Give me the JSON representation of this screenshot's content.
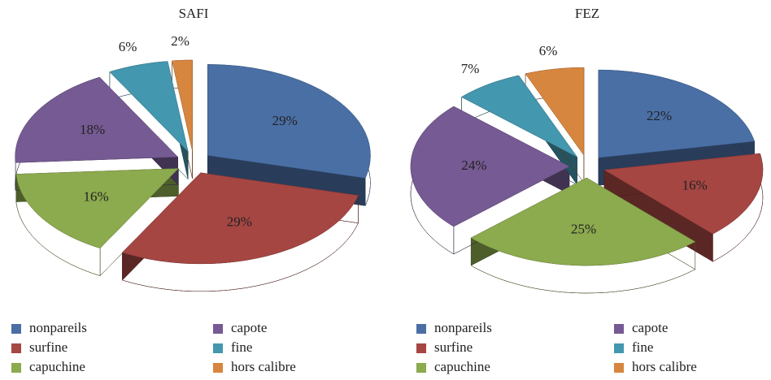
{
  "chart_data": [
    {
      "type": "pie",
      "title": "SAFI",
      "categories": [
        "nonpareils",
        "surfine",
        "capuchine",
        "capote",
        "fine",
        "hors calibre"
      ],
      "values": [
        29,
        29,
        16,
        18,
        6,
        2
      ],
      "value_labels": [
        "29%",
        "29%",
        "16%",
        "18%",
        "6%",
        "2%"
      ],
      "colors": [
        "#4a6fa5",
        "#a54643",
        "#8caa4e",
        "#765a93",
        "#4397ae",
        "#d7863f"
      ]
    },
    {
      "type": "pie",
      "title": "FEZ",
      "categories": [
        "nonpareils",
        "surfine",
        "capuchine",
        "capote",
        "fine",
        "hors calibre"
      ],
      "values": [
        22,
        16,
        25,
        24,
        7,
        6
      ],
      "value_labels": [
        "22%",
        "16%",
        "25%",
        "24%",
        "7%",
        "6%"
      ],
      "colors": [
        "#4a6fa5",
        "#a54643",
        "#8caa4e",
        "#765a93",
        "#4397ae",
        "#d7863f"
      ]
    }
  ]
}
